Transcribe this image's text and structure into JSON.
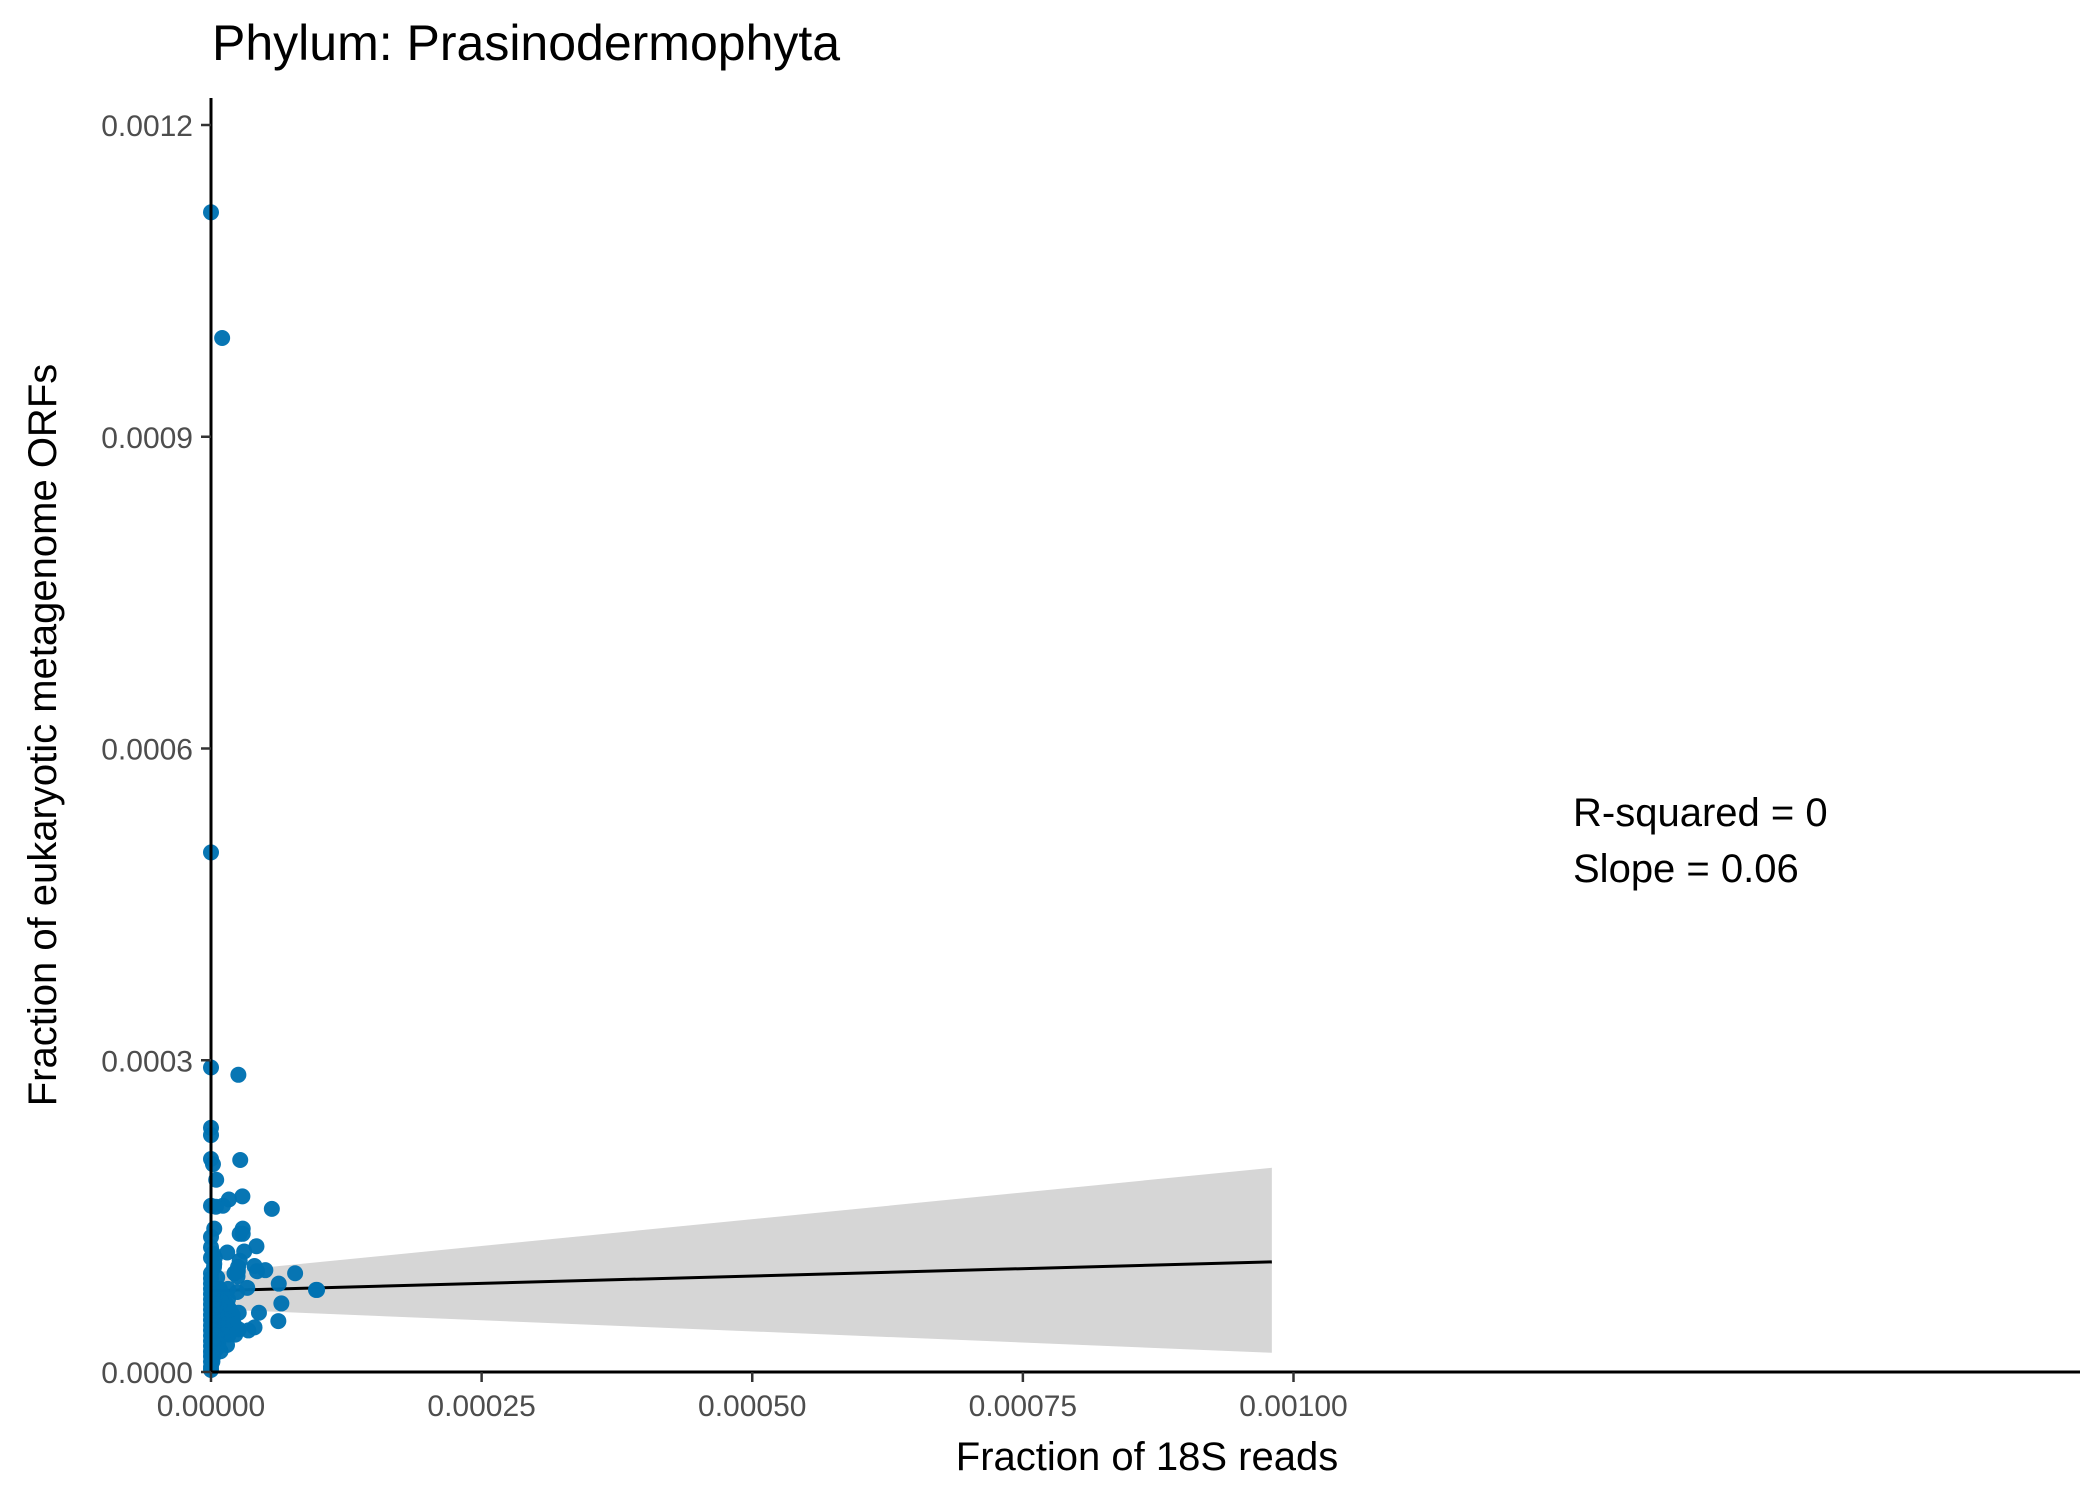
{
  "chart_data": {
    "type": "scatter",
    "title": "Phylum:  Prasinodermophyta",
    "xlabel": "Fraction of 18S reads",
    "ylabel": "Fraction of eukaryotic metagenome ORFs",
    "xlim": [
      0,
      0.00108
    ],
    "ylim": [
      0,
      0.00122
    ],
    "x_ticks": [
      0,
      0.00025,
      0.0005,
      0.00075,
      0.001
    ],
    "x_tick_labels": [
      "0.00000",
      "0.00025",
      "0.00050",
      "0.00075",
      "0.00100"
    ],
    "y_ticks": [
      0,
      0.0003,
      0.0006,
      0.0009,
      0.0012
    ],
    "y_tick_labels": [
      "0.0000",
      "0.0003",
      "0.0006",
      "0.0009",
      "0.0012"
    ],
    "grid": false,
    "point_color": "#0072B2",
    "annotations": [
      "R-squared =  0",
      "Slope =  0.06"
    ],
    "fit": {
      "x": [
        0,
        0.00098
      ],
      "y": [
        7.82e-05,
        0.000106
      ],
      "ci_lower": [
        6.05e-05,
        1.85e-05
      ],
      "ci_upper": [
        9.55e-05,
        0.0001965
      ],
      "line_color": "#000000",
      "band_color": "#d6d6d6"
    },
    "points": [
      [
        0,
        0.001116
      ],
      [
        0,
        0.0005
      ],
      [
        0,
        0.000293
      ],
      [
        0,
        0.000235
      ],
      [
        0,
        0.000228
      ],
      [
        0,
        0.000205
      ],
      [
        0,
        0.00016
      ],
      [
        0,
        0.00013
      ],
      [
        0,
        0.00012
      ],
      [
        0,
        0.00011
      ],
      [
        0,
        9.5e-05
      ],
      [
        0,
        9e-05
      ],
      [
        0,
        8.5e-05
      ],
      [
        0,
        8e-05
      ],
      [
        0,
        7.5e-05
      ],
      [
        0,
        7e-05
      ],
      [
        0,
        6.5e-05
      ],
      [
        0,
        6e-05
      ],
      [
        0,
        5.5e-05
      ],
      [
        0,
        5e-05
      ],
      [
        0,
        4.5e-05
      ],
      [
        0,
        4e-05
      ],
      [
        0,
        3.5e-05
      ],
      [
        0,
        3e-05
      ],
      [
        0,
        2.5e-05
      ],
      [
        0,
        2e-05
      ],
      [
        0,
        1.5e-05
      ],
      [
        0,
        1e-05
      ],
      [
        0,
        5e-06
      ],
      [
        0,
        2e-06
      ],
      [
        1.03e-05,
        0.000995
      ],
      [
        2.53e-05,
        0.000286
      ],
      [
        2.7e-05,
        0.000204
      ],
      [
        2.9e-05,
        0.000169
      ],
      [
        2.93e-05,
        0.000138
      ],
      [
        2.93e-05,
        0.000133
      ],
      [
        3.07e-05,
        0.000116
      ],
      [
        2.65e-05,
        0.000133
      ],
      [
        2.65e-05,
        0.000107
      ],
      [
        2.5e-05,
        0.000101
      ],
      [
        2.48e-05,
        9.7e-05
      ],
      [
        2.45e-05,
        9.2e-05
      ],
      [
        2.42e-05,
        7.7e-05
      ],
      [
        2.56e-05,
        5.7e-05
      ],
      [
        2.57e-05,
        4.1e-05
      ],
      [
        2.17e-05,
        9.5e-05
      ],
      [
        2.1e-05,
        4.6e-05
      ],
      [
        2.24e-05,
        3.6e-05
      ],
      [
        1.99e-05,
        5.5e-05
      ],
      [
        1.98e-05,
        5e-05
      ],
      [
        3.35e-05,
        8.1e-05
      ],
      [
        3.45e-05,
        4e-05
      ],
      [
        4.02e-05,
        0.000102
      ],
      [
        4.02e-05,
        4.3e-05
      ],
      [
        4.2e-05,
        0.000121
      ],
      [
        4.25e-05,
        9.7e-05
      ],
      [
        4.43e-05,
        5.7e-05
      ],
      [
        5.02e-05,
        9.8e-05
      ],
      [
        5.62e-05,
        0.000157
      ],
      [
        6.22e-05,
        4.9e-05
      ],
      [
        6.26e-05,
        8.5e-05
      ],
      [
        6.5e-05,
        6.6e-05
      ],
      [
        7.77e-05,
        9.5e-05
      ],
      [
        9.7e-05,
        7.9e-05
      ],
      [
        9.8e-05,
        7.9e-05
      ],
      [
        1.65e-05,
        0.000166
      ],
      [
        1.5e-05,
        0.000115
      ],
      [
        1.57e-05,
        8e-05
      ],
      [
        1.57e-05,
        7e-05
      ],
      [
        1.73e-05,
        6e-05
      ],
      [
        1.65e-05,
        3.6e-05
      ],
      [
        1.55e-05,
        3.8e-05
      ],
      [
        1.5e-05,
        5e-05
      ],
      [
        1.48e-05,
        2.6e-05
      ],
      [
        1.55e-05,
        6.3e-05
      ],
      [
        1.35e-05,
        6.6e-05
      ],
      [
        1.25e-05,
        4.2e-05
      ],
      [
        1.18e-05,
        5e-05
      ],
      [
        1.13e-05,
        3.6e-05
      ],
      [
        1.1e-05,
        0.00016
      ],
      [
        1.03e-05,
        7.5e-05
      ],
      [
        1e-05,
        5.2e-05
      ],
      [
        9.7e-06,
        4.2e-05
      ],
      [
        9.5e-06,
        6.8e-05
      ],
      [
        9e-06,
        6e-05
      ],
      [
        8.8e-06,
        2e-05
      ],
      [
        8.5e-06,
        7e-05
      ],
      [
        8e-06,
        8e-05
      ],
      [
        7.5e-06,
        6.4e-05
      ],
      [
        7.3e-06,
        5e-05
      ],
      [
        7e-06,
        4e-05
      ],
      [
        6.7e-06,
        2.7e-05
      ],
      [
        6.4e-06,
        5e-05
      ],
      [
        6e-06,
        3.3e-05
      ],
      [
        6e-06,
        4.5e-05
      ],
      [
        5.7e-06,
        9.1e-05
      ],
      [
        5.5e-06,
        2.3e-05
      ],
      [
        5.2e-06,
        3.5e-05
      ],
      [
        4.8e-06,
        0.000185
      ],
      [
        4.5e-06,
        0.000159
      ],
      [
        4.7e-06,
        5.8e-05
      ],
      [
        4.5e-06,
        7.5e-05
      ],
      [
        4.2e-06,
        3.5e-05
      ],
      [
        4e-06,
        6.2e-05
      ],
      [
        3.7e-06,
        7e-05
      ],
      [
        3.5e-06,
        0.00011
      ],
      [
        3.3e-06,
        8e-05
      ],
      [
        3.2e-06,
        4e-05
      ],
      [
        3e-06,
        2.5e-05
      ],
      [
        3e-06,
        5.2e-05
      ],
      [
        3e-06,
        0.000138
      ],
      [
        3e-06,
        0.000104
      ],
      [
        2.8e-06,
        0.000101
      ],
      [
        2.8e-06,
        6.2e-05
      ],
      [
        2.7e-06,
        4.5e-05
      ],
      [
        2.5e-06,
        3.2e-05
      ],
      [
        2.5e-06,
        2e-05
      ],
      [
        2.5e-06,
        7.8e-05
      ],
      [
        2.2e-06,
        6.6e-05
      ],
      [
        2.2e-06,
        5e-05
      ],
      [
        2e-06,
        4e-05
      ],
      [
        2e-06,
        2.8e-05
      ],
      [
        2e-06,
        1.5e-05
      ],
      [
        1.8e-06,
        0.0002
      ],
      [
        1.8e-06,
        0.000114
      ],
      [
        1.8e-06,
        7e-05
      ],
      [
        1.7e-06,
        8.2e-05
      ],
      [
        1.7e-06,
        5.5e-05
      ],
      [
        1.5e-06,
        4.5e-05
      ],
      [
        1.5e-06,
        3e-05
      ],
      [
        1.5e-06,
        2e-05
      ],
      [
        1.3e-06,
        1e-05
      ],
      [
        1.2e-06,
        6.2e-05
      ],
      [
        1.2e-06,
        7.5e-05
      ],
      [
        1.2e-06,
        8e-05
      ],
      [
        1e-06,
        4.2e-05
      ],
      [
        1e-06,
        2.5e-05
      ],
      [
        1e-06,
        1.5e-05
      ],
      [
        8e-07,
        5.5e-05
      ],
      [
        8e-07,
        3e-05
      ],
      [
        7e-07,
        2e-05
      ],
      [
        6e-07,
        6.2e-05
      ],
      [
        5e-07,
        4e-05
      ],
      [
        5e-07,
        1.2e-05
      ],
      [
        4e-07,
        2.8e-05
      ],
      [
        3e-07,
        5e-05
      ],
      [
        2e-07,
        1.8e-05
      ]
    ]
  }
}
